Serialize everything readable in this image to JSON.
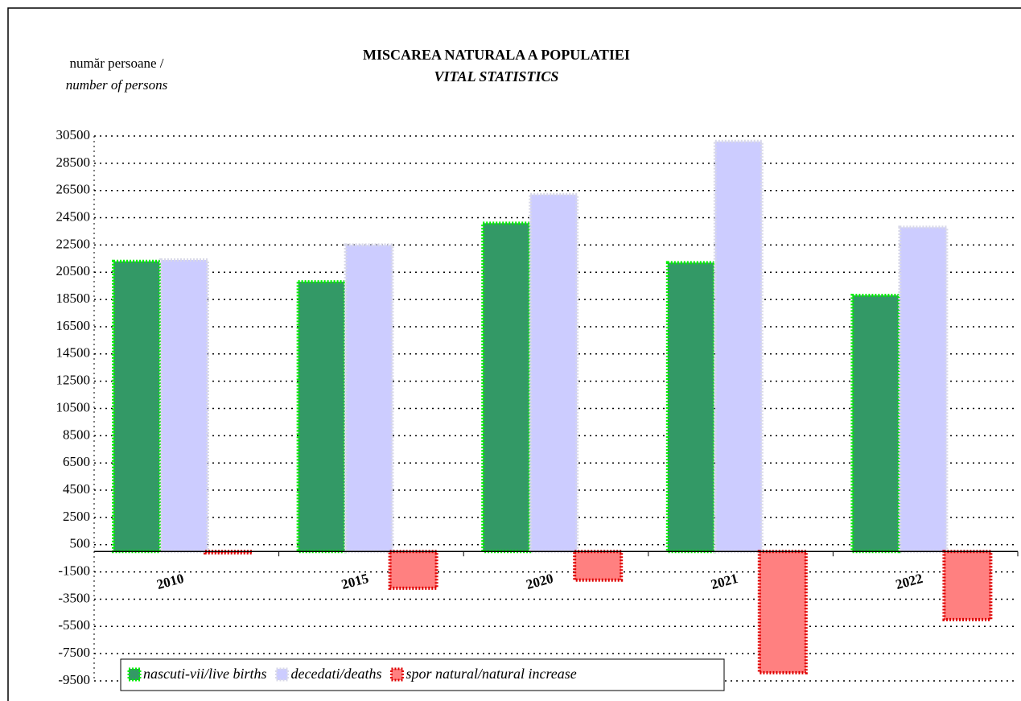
{
  "chart_data": {
    "type": "bar",
    "title": "MISCAREA NATURALA A POPULATIEI",
    "subtitle": "VITAL STATISTICS",
    "y_label": [
      "număr persoane /",
      "number of persons"
    ],
    "categories": [
      "2010",
      "2015",
      "2020",
      "2021",
      "2022"
    ],
    "series": [
      {
        "name": "nascuti-vii/live births",
        "color": "#339966",
        "border": "#00ee00",
        "values": [
          21300,
          19800,
          24100,
          21200,
          18800
        ]
      },
      {
        "name": "decedati/deaths",
        "color": "#ccccff",
        "border": "#d8d8e8",
        "values": [
          21400,
          22500,
          26200,
          30100,
          23800
        ]
      },
      {
        "name": "spor natural/natural increase",
        "color": "#ff8080",
        "border": "#dd0000",
        "values": [
          -100,
          -2700,
          -2100,
          -8900,
          -5000
        ]
      }
    ],
    "ylim": [
      -9500,
      30500
    ],
    "yticks": [
      -9500,
      -7500,
      -5500,
      -3500,
      -1500,
      500,
      2500,
      4500,
      6500,
      8500,
      10500,
      12500,
      14500,
      16500,
      18500,
      20500,
      22500,
      24500,
      26500,
      28500,
      30500
    ],
    "grid": true
  }
}
